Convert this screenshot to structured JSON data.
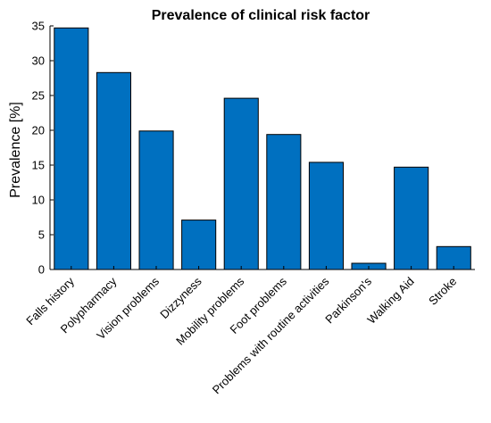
{
  "chart_data": {
    "type": "bar",
    "title": "Prevalence of clinical risk factor",
    "xlabel": "",
    "ylabel": "Prevalence [%]",
    "ylim": [
      0,
      35
    ],
    "yticks": [
      0,
      5,
      10,
      15,
      20,
      25,
      30,
      35
    ],
    "categories": [
      "Falls history",
      "Polypharmacy",
      "Vision problems",
      "Dizzyness",
      "Mobility problems",
      "Foot problems",
      "Problems with routine activities",
      "Parkinson's",
      "Walking Aid",
      "Stroke"
    ],
    "values": [
      34.7,
      28.3,
      19.9,
      7.1,
      24.6,
      19.4,
      15.4,
      0.9,
      14.7,
      3.3
    ],
    "bar_color": "#0070C0",
    "grid": false,
    "legend": "none"
  }
}
